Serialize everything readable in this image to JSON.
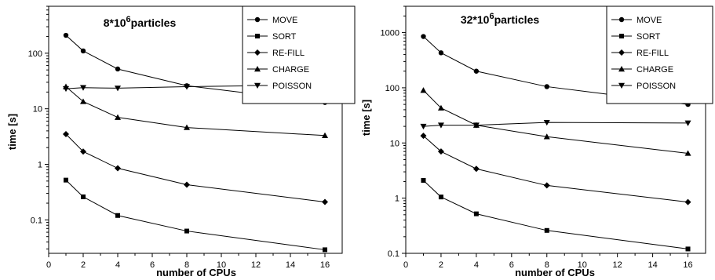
{
  "chart_data": [
    {
      "type": "line",
      "title_main": "8*10",
      "title_sup": "6",
      "title_rest": "particles",
      "xlabel": "number of CPUs",
      "ylabel": "time [s]",
      "xlim": [
        0,
        17
      ],
      "ylim": [
        0.025,
        700
      ],
      "yscale": "log",
      "x_ticks": [
        0,
        2,
        4,
        6,
        8,
        10,
        12,
        14,
        16
      ],
      "y_ticks": [
        0.1,
        1,
        10,
        100
      ],
      "y_tick_labels": [
        "0.1",
        "1",
        "10",
        "100"
      ],
      "legend_position": "top-right",
      "grid": false,
      "x": [
        1,
        2,
        4,
        8,
        16
      ],
      "series": [
        {
          "name": "MOVE",
          "marker": "circle",
          "values": [
            210,
            110,
            52,
            26,
            13
          ]
        },
        {
          "name": "SORT",
          "marker": "square",
          "values": [
            0.52,
            0.26,
            0.12,
            0.063,
            0.029
          ]
        },
        {
          "name": "RE-FILL",
          "marker": "diamond",
          "values": [
            3.5,
            1.7,
            0.85,
            0.43,
            0.21
          ]
        },
        {
          "name": "CHARGE",
          "marker": "triangle-up",
          "values": [
            25,
            13.5,
            7.0,
            4.6,
            3.3
          ]
        },
        {
          "name": "POISSON",
          "marker": "triangle-down",
          "values": [
            23,
            24,
            23.5,
            25,
            27
          ]
        }
      ]
    },
    {
      "type": "line",
      "title_main": "32*10",
      "title_sup": "6",
      "title_rest": "particles",
      "xlabel": "number of CPUs",
      "ylabel": "time [s]",
      "xlim": [
        0,
        17
      ],
      "ylim": [
        0.1,
        3000
      ],
      "yscale": "log",
      "x_ticks": [
        0,
        2,
        4,
        6,
        8,
        10,
        12,
        14,
        16
      ],
      "y_ticks": [
        0.1,
        1,
        10,
        100,
        1000
      ],
      "y_tick_labels": [
        "0.1",
        "1",
        "10",
        "100",
        "1000"
      ],
      "legend_position": "top-right",
      "grid": false,
      "x": [
        1,
        2,
        4,
        8,
        16
      ],
      "series": [
        {
          "name": "MOVE",
          "marker": "circle",
          "values": [
            850,
            430,
            200,
            105,
            50
          ]
        },
        {
          "name": "SORT",
          "marker": "square",
          "values": [
            2.1,
            1.05,
            0.52,
            0.26,
            0.12
          ]
        },
        {
          "name": "RE-FILL",
          "marker": "diamond",
          "values": [
            13.5,
            7.0,
            3.4,
            1.7,
            0.85
          ]
        },
        {
          "name": "CHARGE",
          "marker": "triangle-up",
          "values": [
            90,
            43,
            21,
            13,
            6.5
          ]
        },
        {
          "name": "POISSON",
          "marker": "triangle-down",
          "values": [
            20,
            21,
            21,
            23.5,
            23
          ]
        }
      ]
    }
  ]
}
